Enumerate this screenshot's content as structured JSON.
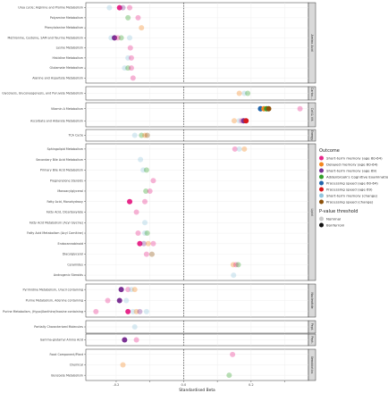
{
  "chart_data": {
    "type": "scatter",
    "xlabel": "Standardised Beta",
    "xlim": [
      -0.29,
      0.37
    ],
    "x_ticks": [
      -0.2,
      -0.1,
      0.0,
      0.1,
      0.2,
      0.3
    ],
    "x_tick_labels": [
      "-0.2",
      "",
      "0.0",
      "",
      "0.2",
      ""
    ],
    "reference_line_x": 0,
    "grid": true,
    "legend_position": "right",
    "legend": {
      "outcome_title": "Outcome",
      "outcomes": [
        {
          "name": "Short-term memory (age 60-64)",
          "color": "#e7298a"
        },
        {
          "name": "Delayed memory (age 60-64)",
          "color": "#f4861f"
        },
        {
          "name": "Short-term memory (age 69)",
          "color": "#7b3294"
        },
        {
          "name": "Addenbrook's Cognitive Examination...",
          "color": "#33a02c"
        },
        {
          "name": "Processing speed (age 60-64)",
          "color": "#2166ac"
        },
        {
          "name": "Processing speed (age 69)",
          "color": "#d7191c"
        },
        {
          "name": "Short-term memory (change)",
          "color": "#92c5de"
        },
        {
          "name": "Processing speed (change)",
          "color": "#8c510a"
        }
      ],
      "threshold_title": "P-value threshold",
      "thresholds": [
        {
          "name": "Nominal",
          "color": "#cccccc"
        },
        {
          "name": "Bonferroni",
          "color": "#111111"
        }
      ]
    },
    "groups": [
      {
        "name": "Amino Acid",
        "rows": [
          "Urea cycle; Arginine and Proline Metabolism",
          "Polyamine Metabolism",
          "Phenylalanine Metabolism",
          "Methionine, Cysteine, SAM and Taurine Metabolism",
          "Lysine Metabolism",
          "Histidine Metabolism",
          "Glutamate Metabolism",
          "Alanine and Aspartate Metabolism"
        ]
      },
      {
        "name": "Carbo...",
        "rows": [
          "Glycolysis, Gluconeogenesis, and Pyruvate Metabolism"
        ]
      },
      {
        "name": "Cof.& Vit.",
        "rows": [
          "Vitamin A Metabolism",
          "Ascorbate and Aldarate Metabolism"
        ]
      },
      {
        "name": "Energy",
        "rows": [
          "TCA Cycle"
        ]
      },
      {
        "name": "Lipid",
        "rows": [
          "Sphingolipid Metabolism",
          "Secondary Bile Acid Metabolism",
          "Primary Bile Acid Metabolism",
          "Pregnenolone Steroids",
          "Monoacylglycerol",
          "Fatty Acid, Monohydroxy",
          "Fatty Acid, Dicarboxylate",
          "Fatty Acid Metabolism (Acyl Glycine)",
          "Fatty Acid Metabolism (Acyl Carnitine)",
          "Endocannabinoid",
          "Diacylglycerol",
          "Ceramides",
          "Androgenic Steroids"
        ]
      },
      {
        "name": "Nucleotide",
        "rows": [
          "Pyrimidine Metabolism, Uracil containing",
          "Purine Metabolism, Adenine containing",
          "Purine Metabolism, (Hypo)Xanthine/Inosine containing"
        ]
      },
      {
        "name": "Pept.",
        "rows": [
          "Partially Characterized Molecules"
        ]
      },
      {
        "name": "Pept.",
        "rows": [
          "Gamma-glutamyl Amino Acid"
        ]
      },
      {
        "name": "Xenobiotics",
        "rows": [
          "Food Component/Plant",
          "Chemical",
          "Benzoate Metabolism"
        ]
      }
    ],
    "points": [
      {
        "row": "Urea cycle; Arginine and Proline Metabolism",
        "x": -0.22,
        "outcome": "Short-term memory (change)",
        "significance": "Nominal"
      },
      {
        "row": "Urea cycle; Arginine and Proline Metabolism",
        "x": -0.19,
        "outcome": "Short-term memory (age 60-64)",
        "significance": "Bonferroni"
      },
      {
        "row": "Urea cycle; Arginine and Proline Metabolism",
        "x": -0.18,
        "outcome": "Short-term memory (age 69)",
        "significance": "Nominal"
      },
      {
        "row": "Urea cycle; Arginine and Proline Metabolism",
        "x": -0.16,
        "outcome": "Short-term memory (age 60-64)",
        "significance": "Nominal"
      },
      {
        "row": "Polyamine Metabolism",
        "x": -0.165,
        "outcome": "Addenbrook's Cognitive Examination...",
        "significance": "Nominal"
      },
      {
        "row": "Polyamine Metabolism",
        "x": -0.135,
        "outcome": "Short-term memory (age 60-64)",
        "significance": "Nominal"
      },
      {
        "row": "Phenylalanine Metabolism",
        "x": -0.125,
        "outcome": "Delayed memory (age 60-64)",
        "significance": "Nominal"
      },
      {
        "row": "Methionine, Cysteine, SAM and Taurine Metabolism",
        "x": -0.215,
        "outcome": "Short-term memory (change)",
        "significance": "Nominal"
      },
      {
        "row": "Methionine, Cysteine, SAM and Taurine Metabolism",
        "x": -0.205,
        "outcome": "Short-term memory (age 69)",
        "significance": "Bonferroni"
      },
      {
        "row": "Methionine, Cysteine, SAM and Taurine Metabolism",
        "x": -0.195,
        "outcome": "Short-term memory (age 60-64)",
        "significance": "Nominal"
      },
      {
        "row": "Methionine, Cysteine, SAM and Taurine Metabolism",
        "x": -0.185,
        "outcome": "Addenbrook's Cognitive Examination...",
        "significance": "Nominal"
      },
      {
        "row": "Methionine, Cysteine, SAM and Taurine Metabolism",
        "x": -0.16,
        "outcome": "Short-term memory (change)",
        "significance": "Nominal"
      },
      {
        "row": "Lysine Metabolism",
        "x": -0.158,
        "outcome": "Short-term memory (age 60-64)",
        "significance": "Nominal"
      },
      {
        "row": "Histidine Metabolism",
        "x": -0.165,
        "outcome": "Short-term memory (change)",
        "significance": "Nominal"
      },
      {
        "row": "Histidine Metabolism",
        "x": -0.155,
        "outcome": "Short-term memory (age 60-64)",
        "significance": "Nominal"
      },
      {
        "row": "Glutamate Metabolism",
        "x": -0.175,
        "outcome": "Short-term memory (change)",
        "significance": "Nominal"
      },
      {
        "row": "Glutamate Metabolism",
        "x": -0.165,
        "outcome": "Addenbrook's Cognitive Examination...",
        "significance": "Nominal"
      },
      {
        "row": "Glutamate Metabolism",
        "x": -0.155,
        "outcome": "Short-term memory (age 60-64)",
        "significance": "Nominal"
      },
      {
        "row": "Alanine and Aspartate Metabolism",
        "x": -0.15,
        "outcome": "Short-term memory (age 60-64)",
        "significance": "Nominal"
      },
      {
        "row": "Glycolysis, Gluconeogenesis, and Pyruvate Metabolism",
        "x": 0.165,
        "outcome": "Delayed memory (age 60-64)",
        "significance": "Nominal"
      },
      {
        "row": "Glycolysis, Gluconeogenesis, and Pyruvate Metabolism",
        "x": 0.18,
        "outcome": "Short-term memory (change)",
        "significance": "Nominal"
      },
      {
        "row": "Glycolysis, Gluconeogenesis, and Pyruvate Metabolism",
        "x": 0.19,
        "outcome": "Addenbrook's Cognitive Examination...",
        "significance": "Nominal"
      },
      {
        "row": "Vitamin A Metabolism",
        "x": 0.228,
        "outcome": "Processing speed (age 60-64)",
        "significance": "Bonferroni"
      },
      {
        "row": "Vitamin A Metabolism",
        "x": 0.238,
        "outcome": "Delayed memory (age 60-64)",
        "significance": "Bonferroni"
      },
      {
        "row": "Vitamin A Metabolism",
        "x": 0.246,
        "outcome": "Addenbrook's Cognitive Examination...",
        "significance": "Bonferroni"
      },
      {
        "row": "Vitamin A Metabolism",
        "x": 0.252,
        "outcome": "Processing speed (change)",
        "significance": "Bonferroni"
      },
      {
        "row": "Vitamin A Metabolism",
        "x": 0.345,
        "outcome": "Short-term memory (age 60-64)",
        "significance": "Nominal"
      },
      {
        "row": "Ascorbate and Aldarate Metabolism",
        "x": 0.15,
        "outcome": "Delayed memory (age 60-64)",
        "significance": "Nominal"
      },
      {
        "row": "Ascorbate and Aldarate Metabolism",
        "x": 0.165,
        "outcome": "Short-term memory (change)",
        "significance": "Nominal"
      },
      {
        "row": "Ascorbate and Aldarate Metabolism",
        "x": 0.172,
        "outcome": "Short-term memory (age 60-64)",
        "significance": "Nominal"
      },
      {
        "row": "Ascorbate and Aldarate Metabolism",
        "x": 0.178,
        "outcome": "Short-term memory (age 69)",
        "significance": "Bonferroni"
      },
      {
        "row": "Ascorbate and Aldarate Metabolism",
        "x": 0.185,
        "outcome": "Processing speed (age 69)",
        "significance": "Bonferroni"
      },
      {
        "row": "TCA Cycle",
        "x": -0.145,
        "outcome": "Short-term memory (change)",
        "significance": "Nominal"
      },
      {
        "row": "TCA Cycle",
        "x": -0.125,
        "outcome": "Addenbrook's Cognitive Examination...",
        "significance": "Nominal"
      },
      {
        "row": "TCA Cycle",
        "x": -0.115,
        "outcome": "Delayed memory (age 60-64)",
        "significance": "Nominal"
      },
      {
        "row": "TCA Cycle",
        "x": -0.108,
        "outcome": "Processing speed (change)",
        "significance": "Nominal"
      },
      {
        "row": "Sphingolipid Metabolism",
        "x": 0.152,
        "outcome": "Short-term memory (age 60-64)",
        "significance": "Nominal"
      },
      {
        "row": "Sphingolipid Metabolism",
        "x": 0.165,
        "outcome": "Short-term memory (change)",
        "significance": "Nominal"
      },
      {
        "row": "Sphingolipid Metabolism",
        "x": 0.18,
        "outcome": "Delayed memory (age 60-64)",
        "significance": "Nominal"
      },
      {
        "row": "Secondary Bile Acid Metabolism",
        "x": -0.128,
        "outcome": "Short-term memory (change)",
        "significance": "Nominal"
      },
      {
        "row": "Primary Bile Acid Metabolism",
        "x": -0.12,
        "outcome": "Short-term memory (change)",
        "significance": "Nominal"
      },
      {
        "row": "Primary Bile Acid Metabolism",
        "x": -0.11,
        "outcome": "Addenbrook's Cognitive Examination...",
        "significance": "Nominal"
      },
      {
        "row": "Pregnenolone Steroids",
        "x": -0.09,
        "outcome": "Short-term memory (age 60-64)",
        "significance": "Nominal"
      },
      {
        "row": "Monoacylglycerol",
        "x": -0.112,
        "outcome": "Addenbrook's Cognitive Examination...",
        "significance": "Nominal"
      },
      {
        "row": "Monoacylglycerol",
        "x": -0.1,
        "outcome": "Short-term memory (age 60-64)",
        "significance": "Nominal"
      },
      {
        "row": "Fatty Acid, Monohydroxy",
        "x": -0.16,
        "outcome": "Short-term memory (age 60-64)",
        "significance": "Bonferroni"
      },
      {
        "row": "Fatty Acid, Monohydroxy",
        "x": -0.115,
        "outcome": "Short-term memory (age 60-64)",
        "significance": "Nominal"
      },
      {
        "row": "Fatty Acid, Dicarboxylate",
        "x": -0.14,
        "outcome": "Short-term memory (age 60-64)",
        "significance": "Nominal"
      },
      {
        "row": "Fatty Acid Metabolism (Acyl Glycine)",
        "x": -0.115,
        "outcome": "Short-term memory (change)",
        "significance": "Nominal"
      },
      {
        "row": "Fatty Acid Metabolism (Acyl Carnitine)",
        "x": -0.135,
        "outcome": "Short-term memory (age 60-64)",
        "significance": "Nominal"
      },
      {
        "row": "Fatty Acid Metabolism (Acyl Carnitine)",
        "x": -0.115,
        "outcome": "Short-term memory (change)",
        "significance": "Nominal"
      },
      {
        "row": "Fatty Acid Metabolism (Acyl Carnitine)",
        "x": -0.108,
        "outcome": "Addenbrook's Cognitive Examination...",
        "significance": "Nominal"
      },
      {
        "row": "Endocannabinoid",
        "x": -0.13,
        "outcome": "Short-term memory (age 60-64)",
        "significance": "Bonferroni"
      },
      {
        "row": "Endocannabinoid",
        "x": -0.118,
        "outcome": "Short-term memory (age 69)",
        "significance": "Nominal"
      },
      {
        "row": "Endocannabinoid",
        "x": -0.105,
        "outcome": "Delayed memory (age 60-64)",
        "significance": "Nominal"
      },
      {
        "row": "Endocannabinoid",
        "x": -0.09,
        "outcome": "Short-term memory (age 60-64)",
        "significance": "Nominal"
      },
      {
        "row": "Diacylglycerol",
        "x": -0.11,
        "outcome": "Short-term memory (age 60-64)",
        "significance": "Nominal"
      },
      {
        "row": "Diacylglycerol",
        "x": -0.094,
        "outcome": "Processing speed (change)",
        "significance": "Nominal"
      },
      {
        "row": "Ceramides",
        "x": 0.147,
        "outcome": "Delayed memory (age 60-64)",
        "significance": "Nominal"
      },
      {
        "row": "Ceramides",
        "x": 0.155,
        "outcome": "Short-term memory (age 60-64)",
        "significance": "Nominal"
      },
      {
        "row": "Ceramides",
        "x": 0.162,
        "outcome": "Addenbrook's Cognitive Examination...",
        "significance": "Nominal"
      },
      {
        "row": "Androgenic Steroids",
        "x": 0.148,
        "outcome": "Short-term memory (change)",
        "significance": "Nominal"
      },
      {
        "row": "Pyrimidine Metabolism, Uracil containing",
        "x": -0.185,
        "outcome": "Short-term memory (age 69)",
        "significance": "Bonferroni"
      },
      {
        "row": "Pyrimidine Metabolism, Uracil containing",
        "x": -0.165,
        "outcome": "Short-term memory (age 60-64)",
        "significance": "Nominal"
      },
      {
        "row": "Pyrimidine Metabolism, Uracil containing",
        "x": -0.155,
        "outcome": "Short-term memory (change)",
        "significance": "Nominal"
      },
      {
        "row": "Pyrimidine Metabolism, Uracil containing",
        "x": -0.145,
        "outcome": "Delayed memory (age 60-64)",
        "significance": "Nominal"
      },
      {
        "row": "Purine Metabolism, Adenine containing",
        "x": -0.225,
        "outcome": "Short-term memory (age 60-64)",
        "significance": "Nominal"
      },
      {
        "row": "Purine Metabolism, Adenine containing",
        "x": -0.19,
        "outcome": "Short-term memory (age 69)",
        "significance": "Bonferroni"
      },
      {
        "row": "Purine Metabolism, Adenine containing",
        "x": -0.17,
        "outcome": "Short-term memory (change)",
        "significance": "Nominal"
      },
      {
        "row": "Purine Metabolism, (Hypo)Xanthine/Inosine containing",
        "x": -0.26,
        "outcome": "Short-term memory (age 60-64)",
        "significance": "Nominal"
      },
      {
        "row": "Purine Metabolism, (Hypo)Xanthine/Inosine containing",
        "x": -0.165,
        "outcome": "Short-term memory (age 60-64)",
        "significance": "Bonferroni"
      },
      {
        "row": "Purine Metabolism, (Hypo)Xanthine/Inosine containing",
        "x": -0.15,
        "outcome": "Short-term memory (change)",
        "significance": "Nominal"
      },
      {
        "row": "Purine Metabolism, (Hypo)Xanthine/Inosine containing",
        "x": -0.14,
        "outcome": "Delayed memory (age 60-64)",
        "significance": "Nominal"
      },
      {
        "row": "Purine Metabolism, (Hypo)Xanthine/Inosine containing",
        "x": -0.13,
        "outcome": "Short-term memory (age 69)",
        "significance": "Nominal"
      },
      {
        "row": "Purine Metabolism, (Hypo)Xanthine/Inosine containing",
        "x": -0.11,
        "outcome": "Short-term memory (change)",
        "significance": "Nominal"
      },
      {
        "row": "Partially Characterized Molecules",
        "x": -0.145,
        "outcome": "Short-term memory (change)",
        "significance": "Nominal"
      },
      {
        "row": "Gamma-glutamyl Amino Acid",
        "x": -0.175,
        "outcome": "Short-term memory (age 69)",
        "significance": "Bonferroni"
      },
      {
        "row": "Gamma-glutamyl Amino Acid",
        "x": -0.14,
        "outcome": "Short-term memory (age 60-64)",
        "significance": "Nominal"
      },
      {
        "row": "Food Component/Plant",
        "x": 0.145,
        "outcome": "Short-term memory (age 60-64)",
        "significance": "Nominal"
      },
      {
        "row": "Chemical",
        "x": -0.18,
        "outcome": "Delayed memory (age 60-64)",
        "significance": "Nominal"
      },
      {
        "row": "Benzoate Metabolism",
        "x": 0.135,
        "outcome": "Addenbrook's Cognitive Examination...",
        "significance": "Nominal"
      }
    ]
  }
}
